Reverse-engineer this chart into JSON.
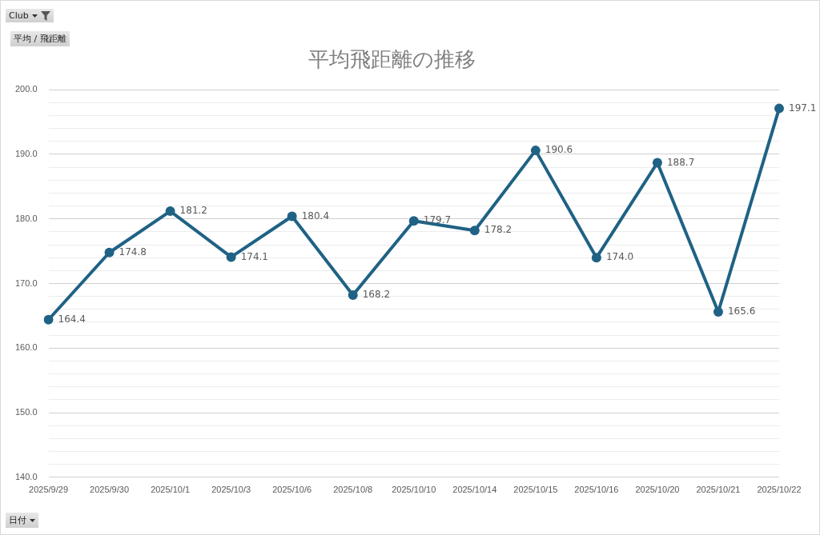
{
  "chart_data": {
    "type": "line",
    "title": "平均飛距離の推移",
    "categories": [
      "2025/9/29",
      "2025/9/30",
      "2025/10/1",
      "2025/10/3",
      "2025/10/6",
      "2025/10/8",
      "2025/10/10",
      "2025/10/14",
      "2025/10/15",
      "2025/10/16",
      "2025/10/20",
      "2025/10/21",
      "2025/10/22"
    ],
    "series": [
      {
        "color": "#1f6285",
        "values": [
          164.4,
          174.8,
          181.2,
          174.1,
          180.4,
          168.2,
          179.7,
          178.2,
          190.6,
          174.0,
          188.7,
          165.6,
          197.1
        ],
        "value_labels": [
          "164.4",
          "174.8",
          "181.2",
          "174.1",
          "180.4",
          "168.2",
          "179.7",
          "178.2",
          "190.6",
          "174.0",
          "188.7",
          "165.6",
          "197.1"
        ]
      }
    ],
    "ylim": [
      140,
      200
    ],
    "yticks": [
      {
        "value": 140,
        "label": "140.0"
      },
      {
        "value": 142,
        "label": null
      },
      {
        "value": 144,
        "label": null
      },
      {
        "value": 146,
        "label": null
      },
      {
        "value": 148,
        "label": null
      },
      {
        "value": 150,
        "label": "150.0"
      },
      {
        "value": 152,
        "label": null
      },
      {
        "value": 154,
        "label": null
      },
      {
        "value": 156,
        "label": null
      },
      {
        "value": 158,
        "label": null
      },
      {
        "value": 160,
        "label": "160.0"
      },
      {
        "value": 162,
        "label": null
      },
      {
        "value": 164,
        "label": null
      },
      {
        "value": 166,
        "label": null
      },
      {
        "value": 168,
        "label": null
      },
      {
        "value": 170,
        "label": "170.0"
      },
      {
        "value": 172,
        "label": null
      },
      {
        "value": 174,
        "label": null
      },
      {
        "value": 176,
        "label": null
      },
      {
        "value": 178,
        "label": null
      },
      {
        "value": 180,
        "label": "180.0"
      },
      {
        "value": 182,
        "label": null
      },
      {
        "value": 184,
        "label": null
      },
      {
        "value": 186,
        "label": null
      },
      {
        "value": 188,
        "label": null
      },
      {
        "value": 190,
        "label": "190.0"
      },
      {
        "value": 192,
        "label": null
      },
      {
        "value": 194,
        "label": null
      },
      {
        "value": 196,
        "label": null
      },
      {
        "value": 198,
        "label": null
      },
      {
        "value": 200,
        "label": "200.0"
      }
    ],
    "grid": "y",
    "marker": "circle",
    "line_style": "solid",
    "legend": false,
    "annotations": [
      "Club",
      "平均 / 飛距離",
      "日付"
    ]
  }
}
